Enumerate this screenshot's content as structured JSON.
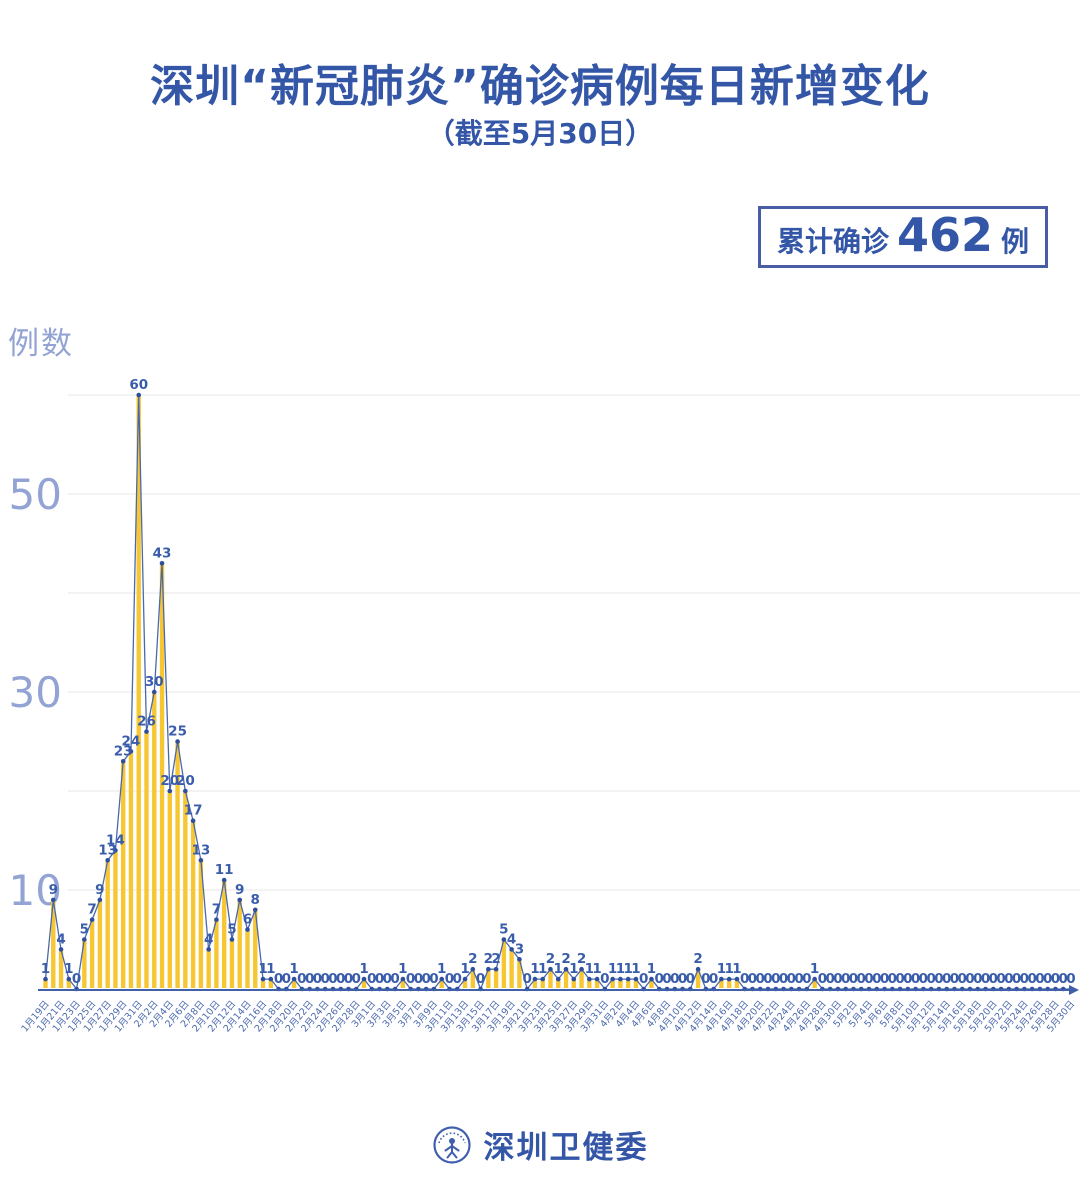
{
  "header": {
    "title": "深圳“新冠肺炎”确诊病例每日新增变化",
    "subtitle": "（截至5月30日）",
    "badge": {
      "prefix": "累计确诊",
      "value": "462",
      "suffix": "例"
    }
  },
  "footer": {
    "org": "深圳卫健委"
  },
  "chart_data": {
    "type": "bar",
    "title": "深圳“新冠肺炎”确诊病例每日新增变化（截至5月30日）",
    "xlabel": "",
    "ylabel": "例数",
    "ylim": [
      0,
      62
    ],
    "ytick_labels": [
      10,
      30,
      50
    ],
    "gridline_values": [
      10,
      20,
      30,
      40,
      50,
      60
    ],
    "grid": "on",
    "legend": "none",
    "points_are_daily": true,
    "x_label_every_n_points": 2,
    "x_tick_labels": [
      "1月19日",
      "1月21日",
      "1月23日",
      "1月25日",
      "1月27日",
      "1月29日",
      "1月31日",
      "2月2日",
      "2月4日",
      "2月6日",
      "2月8日",
      "2月10日",
      "2月12日",
      "2月14日",
      "2月16日",
      "2月18日",
      "2月20日",
      "2月22日",
      "2月24日",
      "2月26日",
      "2月28日",
      "3月1日",
      "3月3日",
      "3月5日",
      "3月7日",
      "3月9日",
      "3月11日",
      "3月13日",
      "3月15日",
      "3月17日",
      "3月19日",
      "3月21日",
      "3月23日",
      "3月25日",
      "3月27日",
      "3月29日",
      "3月31日",
      "4月2日",
      "4月4日",
      "4月6日",
      "4月8日",
      "4月10日",
      "4月12日",
      "4月14日",
      "4月16日",
      "4月18日",
      "4月20日",
      "4月22日",
      "4月24日",
      "4月26日",
      "4月28日",
      "4月30日",
      "5月2日",
      "5月4日",
      "5月6日",
      "5月8日",
      "5月10日",
      "5月12日",
      "5月14日",
      "5月16日",
      "5月18日",
      "5月20日",
      "5月22日",
      "5月24日",
      "5月26日",
      "5月28日",
      "5月30日"
    ],
    "values": [
      1,
      9,
      4,
      1,
      0,
      5,
      7,
      9,
      13,
      14,
      23,
      24,
      60,
      26,
      30,
      43,
      20,
      25,
      20,
      17,
      13,
      4,
      7,
      11,
      5,
      9,
      6,
      8,
      1,
      1,
      0,
      0,
      1,
      0,
      0,
      0,
      0,
      0,
      0,
      0,
      0,
      1,
      0,
      0,
      0,
      0,
      1,
      0,
      0,
      0,
      0,
      1,
      0,
      0,
      1,
      2,
      0,
      2,
      2,
      5,
      4,
      3,
      0,
      1,
      1,
      2,
      1,
      2,
      1,
      2,
      1,
      1,
      0,
      1,
      1,
      1,
      1,
      0,
      1,
      0,
      0,
      0,
      0,
      0,
      2,
      0,
      0,
      1,
      1,
      1,
      0,
      0,
      0,
      0,
      0,
      0,
      0,
      0,
      0,
      1,
      0,
      0,
      0,
      0,
      0,
      0,
      0,
      0,
      0,
      0,
      0,
      0,
      0,
      0,
      0,
      0,
      0,
      0,
      0,
      0,
      0,
      0,
      0,
      0,
      0,
      0,
      0,
      0,
      0,
      0,
      0,
      0,
      0
    ],
    "total_label": "累计确诊462例",
    "colors": {
      "bar": "#F7C733",
      "line": "#4a69ad",
      "dot": "#2e4f9e",
      "value_label": "#3a5dab",
      "axis": "#3f5fa9",
      "x_tick_label": "#4a69ad",
      "y_tick_label": "#93a4d4",
      "gridline": "#e7e7e7",
      "title_blue": "#3456a7"
    }
  }
}
